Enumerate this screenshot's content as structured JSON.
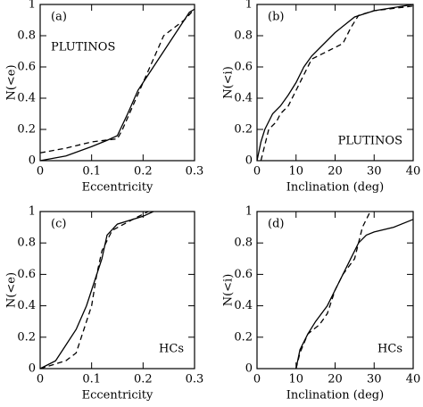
{
  "chart_data": [
    {
      "type": "line",
      "panel_label": "(a)",
      "note": "PLUTINOS",
      "note_corner": "upper left",
      "x_label": "Eccentricity",
      "y_label": "N(<e)",
      "xlim": [
        0,
        0.3
      ],
      "xticks": [
        0,
        0.1,
        0.2,
        0.3
      ],
      "ylim": [
        0,
        1
      ],
      "yticks": [
        0,
        0.2,
        0.4,
        0.6,
        0.8,
        1
      ],
      "series": [
        {
          "style": "solid",
          "color": "#000000",
          "x": [
            0,
            0.05,
            0.1,
            0.13,
            0.15,
            0.17,
            0.19,
            0.2,
            0.22,
            0.25,
            0.27,
            0.29,
            0.3
          ],
          "values": [
            0,
            0.03,
            0.09,
            0.13,
            0.16,
            0.3,
            0.45,
            0.5,
            0.6,
            0.75,
            0.85,
            0.95,
            0.97
          ]
        },
        {
          "style": "dashed",
          "color": "#000000",
          "x": [
            0,
            0.05,
            0.1,
            0.15,
            0.16,
            0.18,
            0.2,
            0.22,
            0.24,
            0.26,
            0.28,
            0.3
          ],
          "values": [
            0.05,
            0.08,
            0.12,
            0.14,
            0.2,
            0.35,
            0.5,
            0.65,
            0.8,
            0.85,
            0.9,
            0.97
          ]
        }
      ]
    },
    {
      "type": "line",
      "panel_label": "(b)",
      "note": "PLUTINOS",
      "note_corner": "lower right",
      "x_label": "Inclination (deg)",
      "y_label": "N(<i)",
      "xlim": [
        0,
        40
      ],
      "xticks": [
        0,
        10,
        20,
        30,
        40
      ],
      "ylim": [
        0,
        1
      ],
      "yticks": [
        0,
        0.2,
        0.4,
        0.6,
        0.8,
        1
      ],
      "series": [
        {
          "style": "solid",
          "color": "#000000",
          "x": [
            0,
            1,
            2,
            4,
            6,
            8,
            10,
            12,
            14,
            16,
            20,
            25,
            30,
            40
          ],
          "values": [
            0,
            0.12,
            0.2,
            0.3,
            0.35,
            0.42,
            0.5,
            0.6,
            0.67,
            0.72,
            0.82,
            0.92,
            0.96,
            1
          ]
        },
        {
          "style": "dashed",
          "color": "#000000",
          "x": [
            1,
            2,
            3,
            5,
            6,
            8,
            10,
            12,
            14,
            18,
            22,
            24,
            26,
            30,
            40
          ],
          "values": [
            0,
            0.1,
            0.2,
            0.25,
            0.3,
            0.35,
            0.45,
            0.55,
            0.65,
            0.7,
            0.75,
            0.85,
            0.93,
            0.96,
            0.99
          ]
        }
      ]
    },
    {
      "type": "line",
      "panel_label": "(c)",
      "note": "HCs",
      "note_corner": "lower right",
      "x_label": "Eccentricity",
      "y_label": "N(<e)",
      "xlim": [
        0,
        0.3
      ],
      "xticks": [
        0,
        0.1,
        0.2,
        0.3
      ],
      "ylim": [
        0,
        1
      ],
      "yticks": [
        0,
        0.2,
        0.4,
        0.6,
        0.8,
        1
      ],
      "series": [
        {
          "style": "solid",
          "color": "#000000",
          "x": [
            0,
            0.03,
            0.05,
            0.07,
            0.09,
            0.1,
            0.12,
            0.13,
            0.15,
            0.2,
            0.22
          ],
          "values": [
            0,
            0.05,
            0.15,
            0.25,
            0.4,
            0.5,
            0.7,
            0.85,
            0.92,
            0.97,
            1
          ]
        },
        {
          "style": "dashed",
          "color": "#000000",
          "x": [
            0,
            0.05,
            0.07,
            0.08,
            0.1,
            0.11,
            0.12,
            0.14,
            0.18,
            0.21
          ],
          "values": [
            0,
            0.05,
            0.1,
            0.2,
            0.4,
            0.6,
            0.75,
            0.88,
            0.95,
            1
          ]
        }
      ]
    },
    {
      "type": "line",
      "panel_label": "(d)",
      "note": "HCs",
      "note_corner": "lower right",
      "x_label": "Inclination (deg)",
      "y_label": "N(<i)",
      "xlim": [
        0,
        40
      ],
      "xticks": [
        0,
        10,
        20,
        30,
        40
      ],
      "ylim": [
        0,
        1
      ],
      "yticks": [
        0,
        0.2,
        0.4,
        0.6,
        0.8,
        1
      ],
      "series": [
        {
          "style": "solid",
          "color": "#000000",
          "x": [
            10,
            11,
            13,
            15,
            18,
            20,
            22,
            24,
            26,
            28,
            30,
            35,
            40
          ],
          "values": [
            0,
            0.12,
            0.22,
            0.3,
            0.4,
            0.5,
            0.6,
            0.7,
            0.8,
            0.85,
            0.87,
            0.9,
            0.95
          ]
        },
        {
          "style": "dashed",
          "color": "#000000",
          "x": [
            10,
            11,
            13,
            16,
            18,
            20,
            22,
            25,
            26,
            27,
            28,
            29
          ],
          "values": [
            0,
            0.1,
            0.22,
            0.28,
            0.35,
            0.5,
            0.6,
            0.7,
            0.8,
            0.9,
            0.95,
            1
          ]
        }
      ]
    }
  ]
}
